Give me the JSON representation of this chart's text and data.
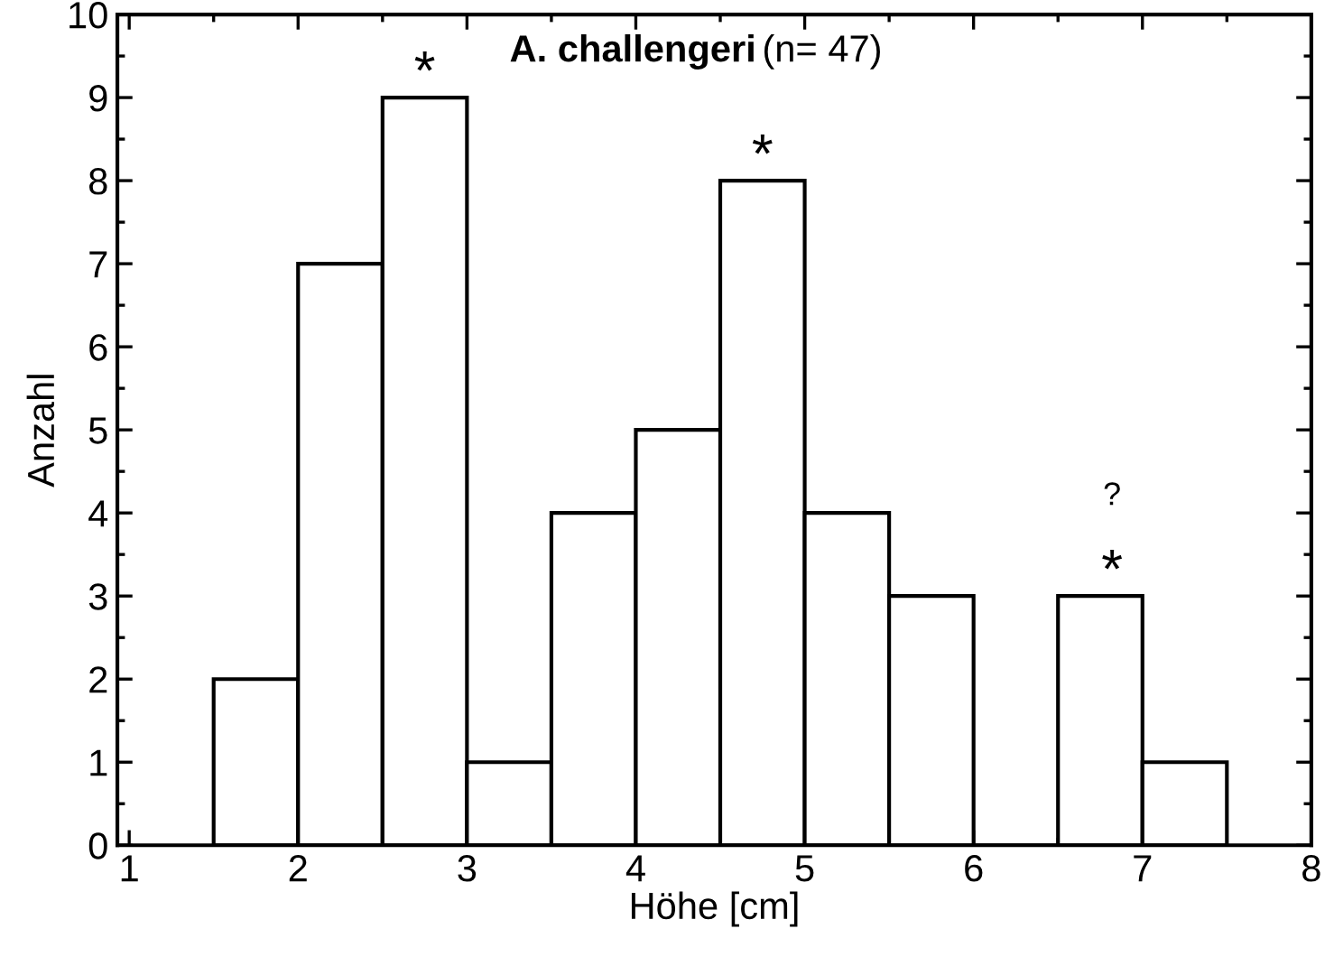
{
  "chart_data": {
    "type": "histogram",
    "title": "A. challengeri",
    "subtitle": "(n= 47)",
    "xlabel": "Höhe [cm]",
    "ylabel": "Anzahl",
    "bins": [
      1.5,
      2.0,
      2.5,
      3.0,
      3.5,
      4.0,
      4.5,
      5.0,
      5.5,
      6.0,
      6.5,
      7.0,
      7.5
    ],
    "values": [
      2,
      7,
      9,
      1,
      4,
      5,
      8,
      4,
      3,
      0,
      3,
      1
    ],
    "color": "#ffffff",
    "xlim": [
      0.93,
      8.0
    ],
    "xticks": [
      1,
      2,
      3,
      4,
      5,
      6,
      7,
      8
    ],
    "ylim": [
      0,
      10
    ],
    "yticks": [
      0,
      1,
      2,
      3,
      4,
      5,
      6,
      7,
      8,
      9,
      10
    ],
    "grid": false,
    "annotations": [
      {
        "text": "*",
        "x": 2.75,
        "y": 9.05
      },
      {
        "text": "*",
        "x": 4.75,
        "y": 8.05
      },
      {
        "text": "*",
        "x": 6.82,
        "y": 3.05
      },
      "?"
    ]
  }
}
